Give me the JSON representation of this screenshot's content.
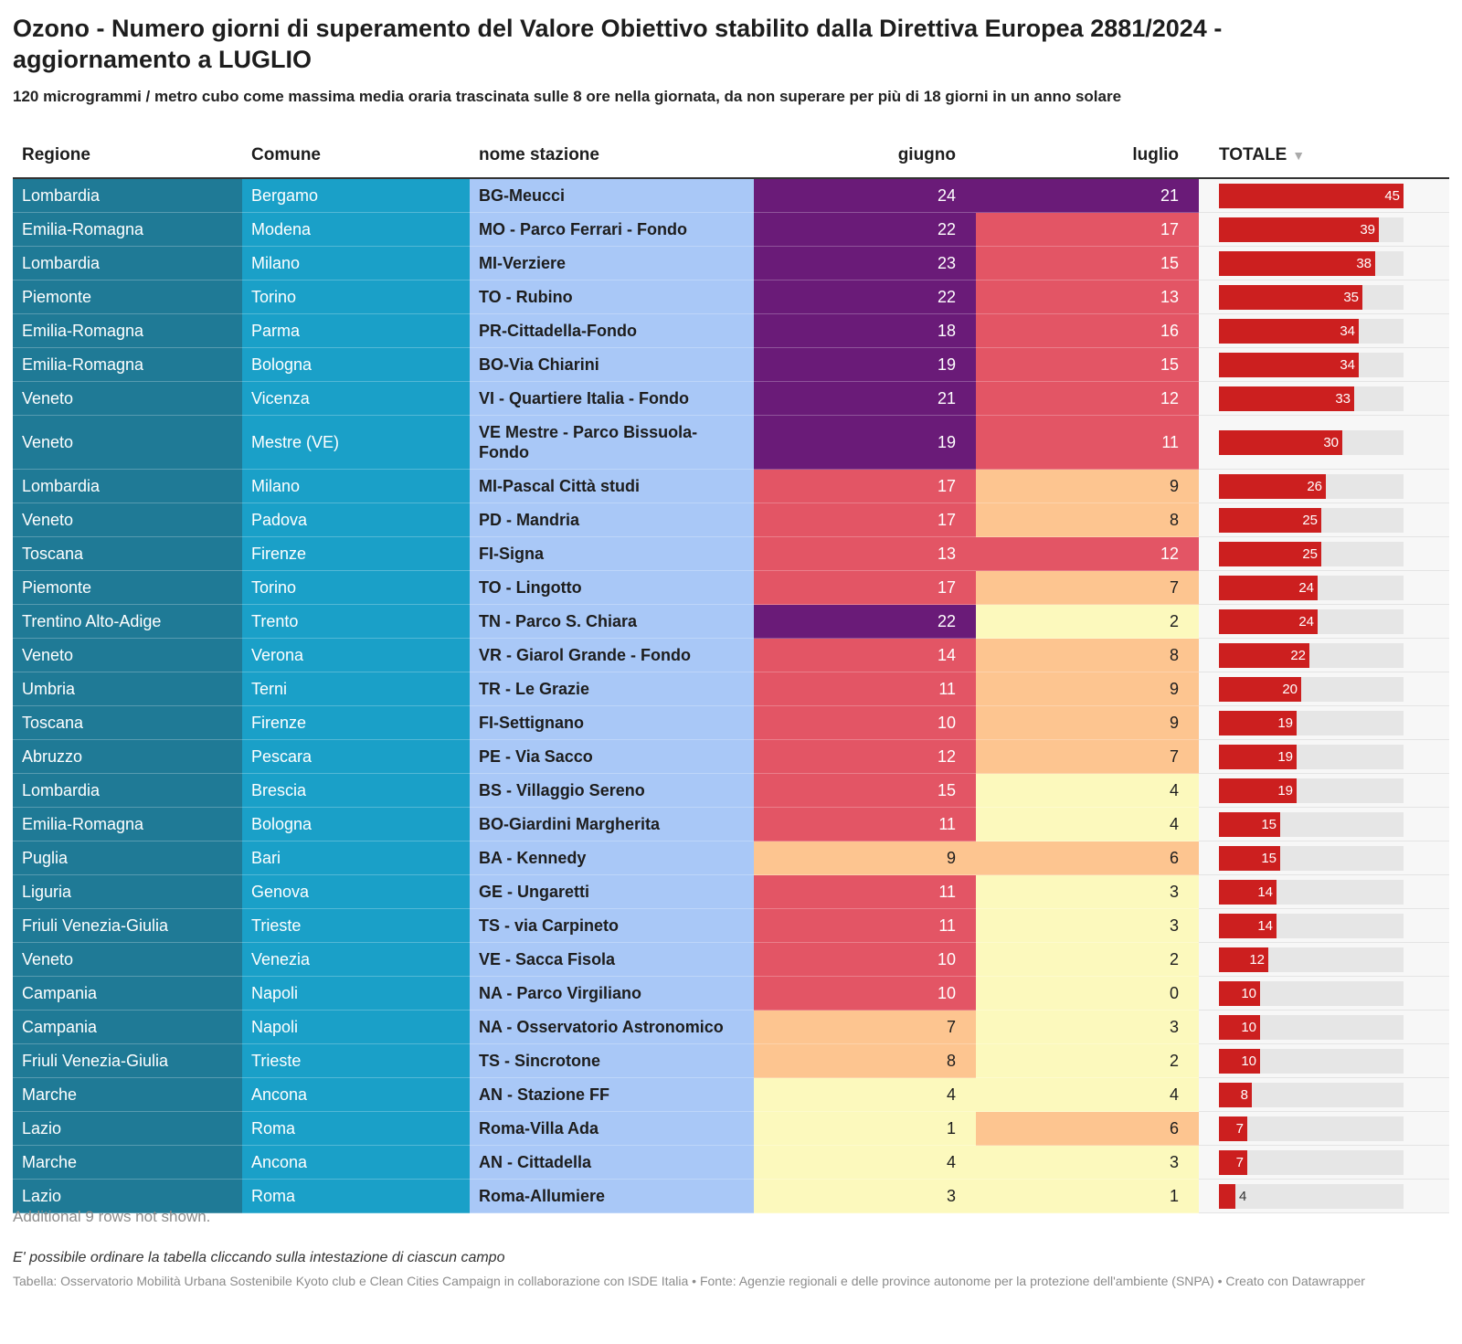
{
  "title": "Ozono - Numero giorni di superamento del Valore Obiettivo stabilito dalla Direttiva Europea 2881/2024 - aggiornamento a LUGLIO",
  "subtitle": "120 microgrammi / metro cubo come massima media oraria trascinata sulle 8 ore nella giornata, da non superare per più di 18 giorni in un anno solare",
  "colors": {
    "regione": "#1f7a96",
    "comune": "#1aa0c8",
    "stazione": "#a9c8f7",
    "bar": "#cc1f1f",
    "bar_track": "#e6e6e6",
    "scale": [
      "#fcf9bd",
      "#fdc590",
      "#e35565",
      "#6a1b78"
    ]
  },
  "sort_icon": "sort-down-triangle-icon",
  "chart_data": {
    "type": "table",
    "columns": [
      "Regione",
      "Comune",
      "nome stazione",
      "giugno",
      "luglio",
      "TOTALE"
    ],
    "sorted_by": "TOTALE",
    "bar_max": 45,
    "rows": [
      {
        "regione": "Lombardia",
        "comune": "Bergamo",
        "stazione": "BG-Meucci",
        "giugno": 24,
        "luglio": 21,
        "totale": 45
      },
      {
        "regione": "Emilia-Romagna",
        "comune": "Modena",
        "stazione": "MO - Parco Ferrari - Fondo",
        "giugno": 22,
        "luglio": 17,
        "totale": 39
      },
      {
        "regione": "Lombardia",
        "comune": "Milano",
        "stazione": "MI-Verziere",
        "giugno": 23,
        "luglio": 15,
        "totale": 38
      },
      {
        "regione": "Piemonte",
        "comune": "Torino",
        "stazione": "TO - Rubino",
        "giugno": 22,
        "luglio": 13,
        "totale": 35
      },
      {
        "regione": "Emilia-Romagna",
        "comune": "Parma",
        "stazione": "PR-Cittadella-Fondo",
        "giugno": 18,
        "luglio": 16,
        "totale": 34
      },
      {
        "regione": "Emilia-Romagna",
        "comune": "Bologna",
        "stazione": "BO-Via Chiarini",
        "giugno": 19,
        "luglio": 15,
        "totale": 34
      },
      {
        "regione": "Veneto",
        "comune": "Vicenza",
        "stazione": "VI - Quartiere Italia - Fondo",
        "giugno": 21,
        "luglio": 12,
        "totale": 33
      },
      {
        "regione": "Veneto",
        "comune": "Mestre (VE)",
        "stazione": "VE Mestre - Parco Bissuola-Fondo",
        "giugno": 19,
        "luglio": 11,
        "totale": 30
      },
      {
        "regione": "Lombardia",
        "comune": "Milano",
        "stazione": "MI-Pascal Città studi",
        "giugno": 17,
        "luglio": 9,
        "totale": 26
      },
      {
        "regione": "Veneto",
        "comune": "Padova",
        "stazione": "PD - Mandria",
        "giugno": 17,
        "luglio": 8,
        "totale": 25
      },
      {
        "regione": "Toscana",
        "comune": "Firenze",
        "stazione": "FI-Signa",
        "giugno": 13,
        "luglio": 12,
        "totale": 25
      },
      {
        "regione": "Piemonte",
        "comune": "Torino",
        "stazione": "TO - Lingotto",
        "giugno": 17,
        "luglio": 7,
        "totale": 24
      },
      {
        "regione": "Trentino Alto-Adige",
        "comune": "Trento",
        "stazione": "TN - Parco S. Chiara",
        "giugno": 22,
        "luglio": 2,
        "totale": 24
      },
      {
        "regione": "Veneto",
        "comune": "Verona",
        "stazione": "VR - Giarol Grande - Fondo",
        "giugno": 14,
        "luglio": 8,
        "totale": 22
      },
      {
        "regione": "Umbria",
        "comune": "Terni",
        "stazione": "TR - Le Grazie",
        "giugno": 11,
        "luglio": 9,
        "totale": 20
      },
      {
        "regione": "Toscana",
        "comune": "Firenze",
        "stazione": "FI-Settignano",
        "giugno": 10,
        "luglio": 9,
        "totale": 19
      },
      {
        "regione": "Abruzzo",
        "comune": "Pescara",
        "stazione": "PE - Via Sacco",
        "giugno": 12,
        "luglio": 7,
        "totale": 19
      },
      {
        "regione": "Lombardia",
        "comune": "Brescia",
        "stazione": "BS - Villaggio Sereno",
        "giugno": 15,
        "luglio": 4,
        "totale": 19
      },
      {
        "regione": "Emilia-Romagna",
        "comune": "Bologna",
        "stazione": "BO-Giardini Margherita",
        "giugno": 11,
        "luglio": 4,
        "totale": 15
      },
      {
        "regione": "Puglia",
        "comune": "Bari",
        "stazione": "BA - Kennedy",
        "giugno": 9,
        "luglio": 6,
        "totale": 15
      },
      {
        "regione": "Liguria",
        "comune": "Genova",
        "stazione": "GE - Ungaretti",
        "giugno": 11,
        "luglio": 3,
        "totale": 14
      },
      {
        "regione": "Friuli Venezia-Giulia",
        "comune": "Trieste",
        "stazione": "TS - via Carpineto",
        "giugno": 11,
        "luglio": 3,
        "totale": 14
      },
      {
        "regione": "Veneto",
        "comune": "Venezia",
        "stazione": "VE - Sacca Fisola",
        "giugno": 10,
        "luglio": 2,
        "totale": 12
      },
      {
        "regione": "Campania",
        "comune": "Napoli",
        "stazione": "NA - Parco Virgiliano",
        "giugno": 10,
        "luglio": 0,
        "totale": 10
      },
      {
        "regione": "Campania",
        "comune": "Napoli",
        "stazione": "NA - Osservatorio Astronomico",
        "giugno": 7,
        "luglio": 3,
        "totale": 10
      },
      {
        "regione": "Friuli Venezia-Giulia",
        "comune": "Trieste",
        "stazione": "TS - Sincrotone",
        "giugno": 8,
        "luglio": 2,
        "totale": 10
      },
      {
        "regione": "Marche",
        "comune": "Ancona",
        "stazione": "AN - Stazione FF",
        "giugno": 4,
        "luglio": 4,
        "totale": 8
      },
      {
        "regione": "Lazio",
        "comune": "Roma",
        "stazione": "Roma-Villa Ada",
        "giugno": 1,
        "luglio": 6,
        "totale": 7
      },
      {
        "regione": "Marche",
        "comune": "Ancona",
        "stazione": "AN - Cittadella",
        "giugno": 4,
        "luglio": 3,
        "totale": 7
      },
      {
        "regione": "Lazio",
        "comune": "Roma",
        "stazione": "Roma-Allumiere",
        "giugno": 3,
        "luglio": 1,
        "totale": 4
      }
    ]
  },
  "notes": {
    "rows_hidden": "Additional 9 rows not shown.",
    "sort_hint": "E' possibile ordinare la tabella cliccando sulla intestazione di ciascun campo",
    "source": "Tabella: Osservatorio Mobilità Urbana Sostenibile Kyoto club e Clean Cities Campaign in collaborazione con ISDE Italia • Fonte: Agenzie regionali e delle province autonome per la protezione dell'ambiente (SNPA) • Creato con Datawrapper"
  }
}
